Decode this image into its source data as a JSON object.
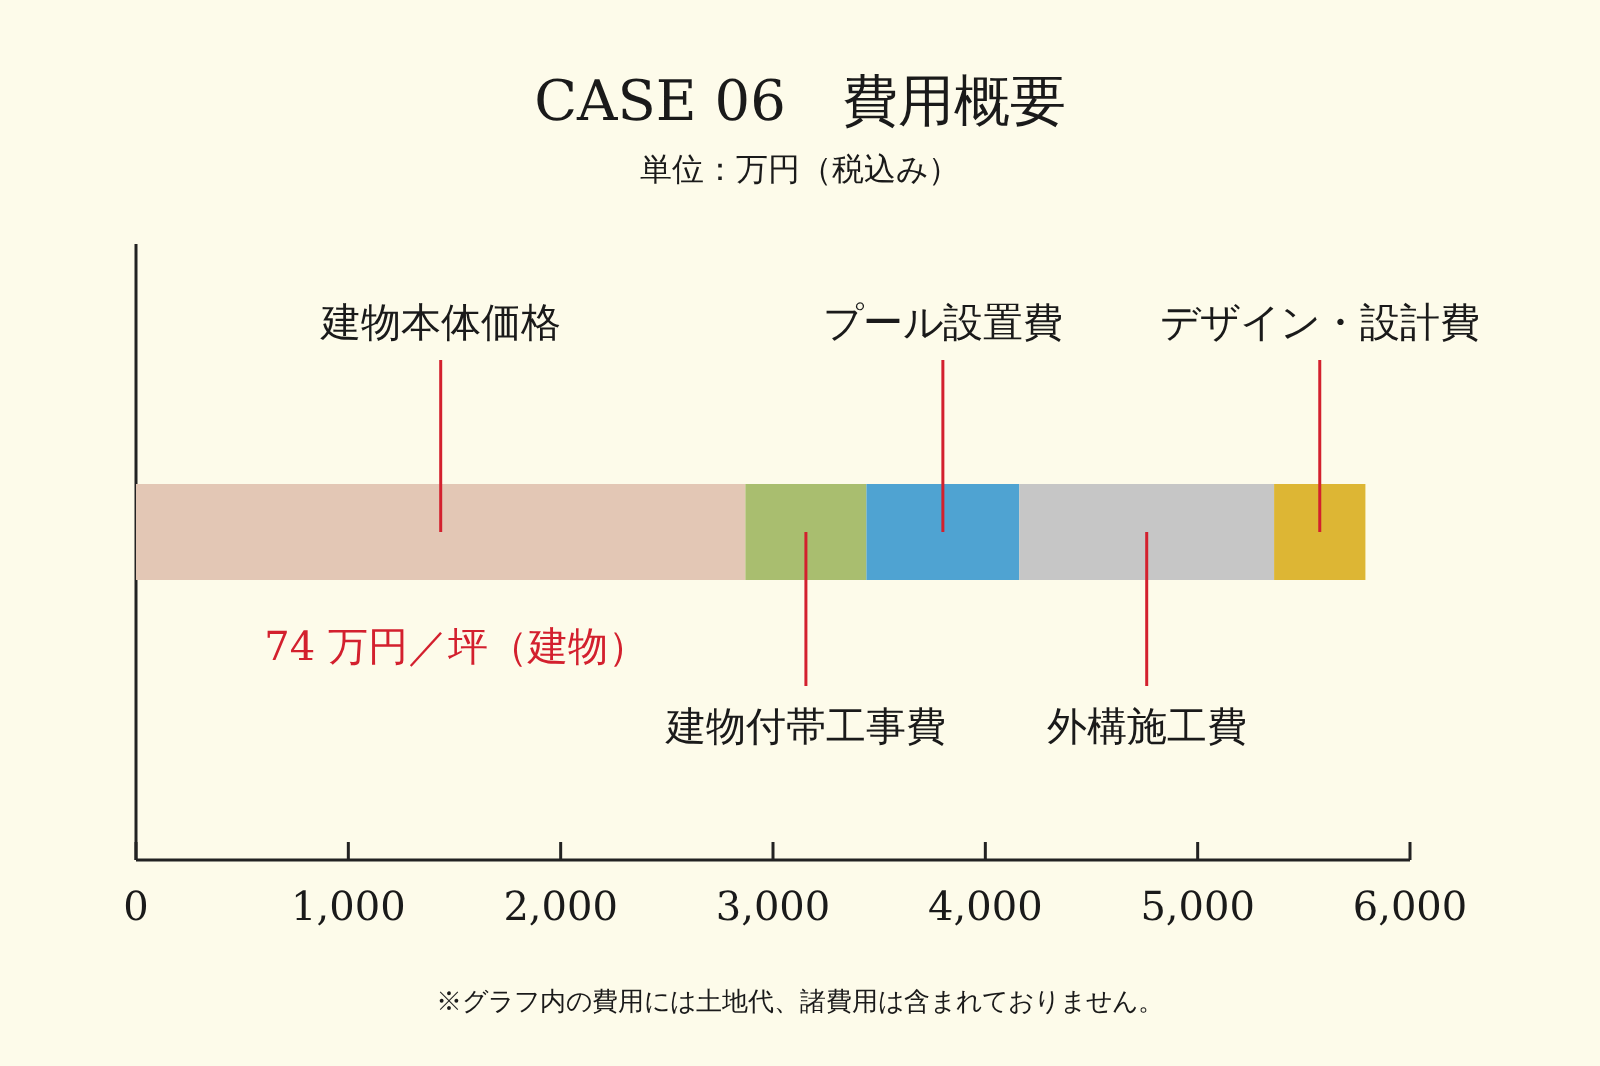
{
  "chart_data": {
    "type": "bar",
    "orientation": "horizontal",
    "stacked": true,
    "title": "CASE 06　費用概要",
    "subtitle": "単位：万円（税込み）",
    "categories": [
      null
    ],
    "series": [
      {
        "name": "建物本体価格",
        "color": "#e3c7b5",
        "values": [
          2870
        ]
      },
      {
        "name": "建物付帯工事費",
        "color": "#a9be6f",
        "values": [
          570
        ]
      },
      {
        "name": "プール設置費",
        "color": "#4fa3d2",
        "values": [
          720
        ]
      },
      {
        "name": "外構施工費",
        "color": "#c6c6c6",
        "values": [
          1200
        ]
      },
      {
        "name": "デザイン・設計費",
        "color": "#ddb634",
        "values": [
          430
        ]
      }
    ],
    "xlim": [
      0,
      6000
    ],
    "xticks": [
      {
        "value": 0,
        "label": "0"
      },
      {
        "value": 1000,
        "label": "1,000"
      },
      {
        "value": 2000,
        "label": "2,000"
      },
      {
        "value": 3000,
        "label": "3,000"
      },
      {
        "value": 4000,
        "label": "4,000"
      },
      {
        "value": 5000,
        "label": "5,000"
      },
      {
        "value": 6000,
        "label": "6,000"
      }
    ],
    "annotations": [
      "74 万円／坪（建物）",
      "※グラフ内の費用には土地代、諸費用は含まれておりません。"
    ]
  }
}
